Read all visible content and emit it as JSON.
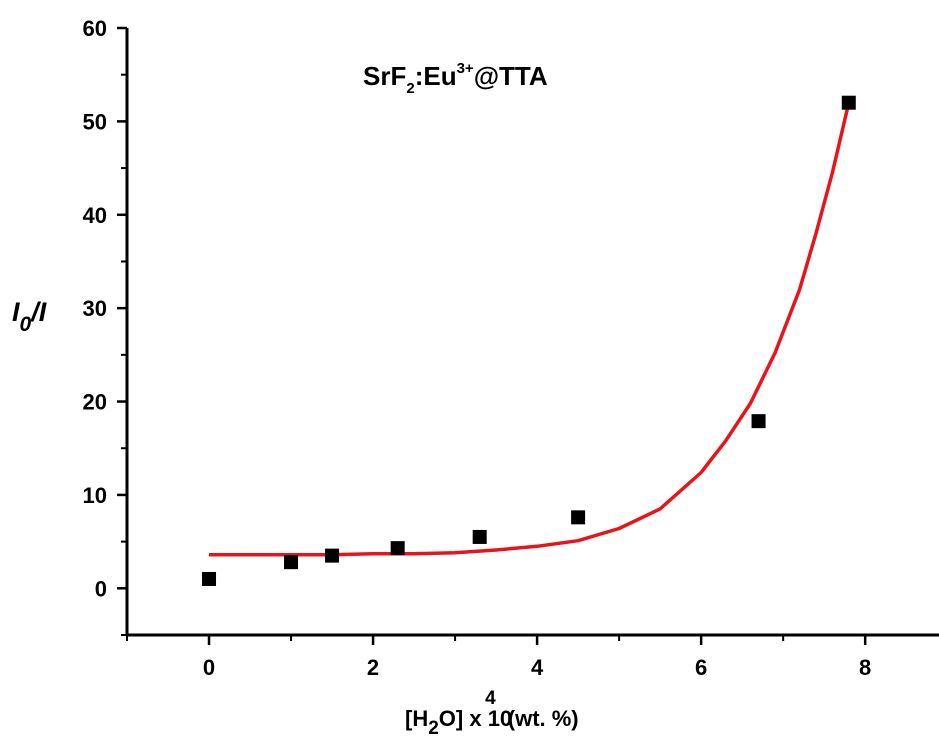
{
  "chart_data": {
    "type": "scatter",
    "annotation": {
      "base": "SrF",
      "sub": "2",
      "mid": ":Eu",
      "sup": "3+",
      "tail": "@TTA"
    },
    "ylabel": {
      "main": "I",
      "sub": "0",
      "tail": "/I"
    },
    "xlabel": {
      "p1": "[H",
      "sub": "2",
      "p2": "O] x 10",
      "sup": "4",
      "p3": "(wt. %)"
    },
    "xlim": [
      -1,
      8.9
    ],
    "ylim": [
      -5,
      60
    ],
    "x_ticks": [
      {
        "value": 0,
        "label": "0"
      },
      {
        "value": 2,
        "label": "2"
      },
      {
        "value": 4,
        "label": "4"
      },
      {
        "value": 6,
        "label": "6"
      },
      {
        "value": 8,
        "label": "8"
      }
    ],
    "y_ticks": [
      {
        "value": 0,
        "label": "0"
      },
      {
        "value": 10,
        "label": "10"
      },
      {
        "value": 20,
        "label": "20"
      },
      {
        "value": 30,
        "label": "30"
      },
      {
        "value": 40,
        "label": "40"
      },
      {
        "value": 50,
        "label": "50"
      },
      {
        "value": 60,
        "label": "60"
      }
    ],
    "series": [
      {
        "type": "scatter",
        "marker": "square",
        "color": "#000000",
        "x": [
          0,
          1.0,
          1.5,
          2.3,
          3.3,
          4.5,
          6.7,
          7.8
        ],
        "y": [
          1.0,
          2.8,
          3.5,
          4.3,
          5.5,
          7.6,
          17.9,
          52.0
        ]
      },
      {
        "type": "line",
        "color": "#e8141c",
        "x": [
          0,
          0.5,
          1,
          1.5,
          2,
          2.5,
          3,
          3.5,
          4,
          4.5,
          5,
          5.5,
          6,
          6.3,
          6.6,
          6.9,
          7.2,
          7.4,
          7.6,
          7.8
        ],
        "y": [
          3.6,
          3.6,
          3.6,
          3.6,
          3.7,
          3.7,
          3.8,
          4.1,
          4.5,
          5.1,
          6.4,
          8.5,
          12.4,
          15.8,
          19.8,
          25.2,
          32.0,
          38.0,
          44.5,
          52.0
        ]
      }
    ]
  }
}
